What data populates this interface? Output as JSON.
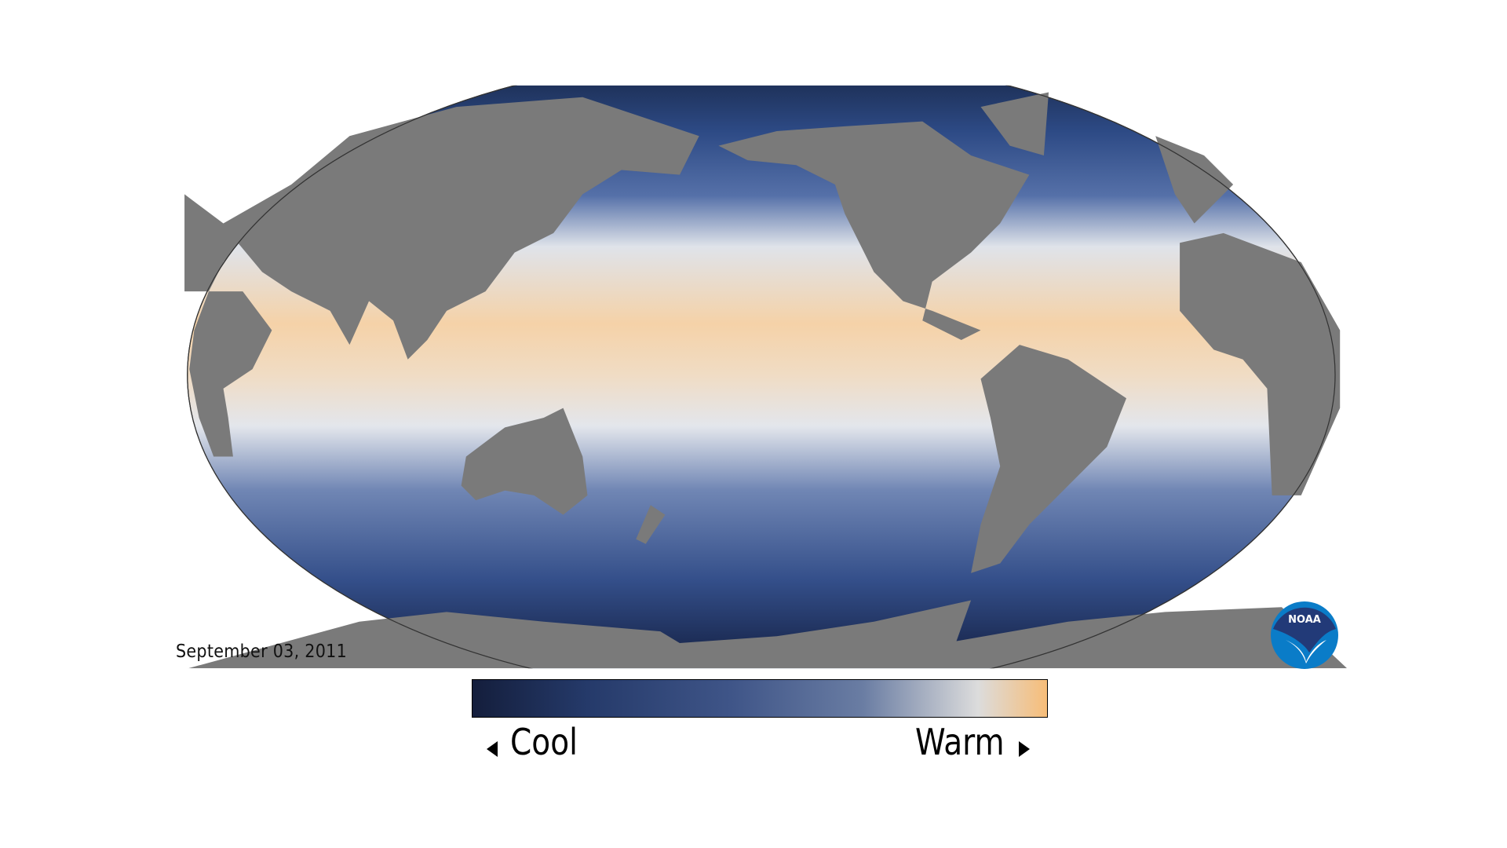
{
  "date_label": "September 03, 2011",
  "legend": {
    "low_label": "Cool",
    "high_label": "Warm",
    "colors": [
      "#141e3c",
      "#253a6a",
      "#3f5588",
      "#6a7da3",
      "#dcdcdc",
      "#f7bd78"
    ]
  },
  "logo": {
    "text": "NOAA",
    "colors": [
      "#223a78",
      "#0a7cc8",
      "#ffffff"
    ]
  },
  "map": {
    "ocean_colors": {
      "cold": "#15223f",
      "mid": "#3f5a92",
      "neutral": "#e3e6ec",
      "warm": "#f5d2a8"
    },
    "land_color": "#7a7a7a"
  }
}
